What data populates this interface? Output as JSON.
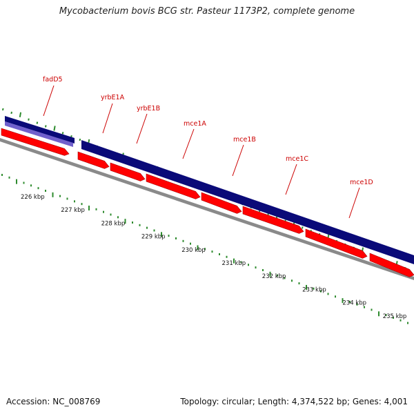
{
  "title": "Mycobacterium bovis BCG str. Pasteur 1173P2, complete genome",
  "accession_text": "Accession: NC_008769",
  "summary_text": "Topology: circular; Length: 4,374,522 bp; Genes: 4,001",
  "colors": {
    "label": "#cc0000",
    "gene_feature": "#0a0a78",
    "gene_feature_light": "#7060cc",
    "cds": "#ff0000",
    "backbone": "#8a8a8a",
    "tick_outer": "#2e8b2e",
    "tick_inner": "#2e8b2e"
  },
  "map": {
    "kbp_labels": [
      "226 kbp",
      "227 kbp",
      "228 kbp",
      "229 kbp",
      "230 kbp",
      "231 kbp",
      "232 kbp",
      "233 kbp",
      "234 kbp",
      "235 kbp"
    ],
    "genes": [
      {
        "name": "fadD5",
        "strand": "upper"
      },
      {
        "name": "yrbE1A",
        "strand": "lower"
      },
      {
        "name": "yrbE1B",
        "strand": "lower"
      },
      {
        "name": "mce1A",
        "strand": "lower"
      },
      {
        "name": "mce1B",
        "strand": "lower"
      },
      {
        "name": "mce1C",
        "strand": "lower"
      },
      {
        "name": "mce1D",
        "strand": "lower"
      }
    ]
  }
}
